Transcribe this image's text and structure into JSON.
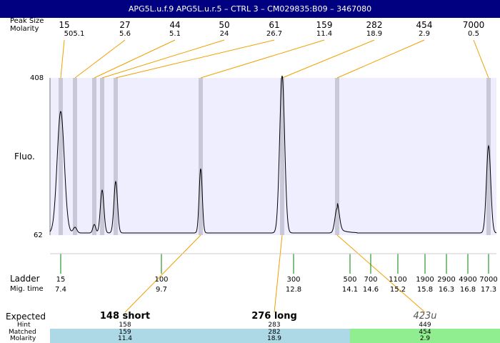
{
  "window": {
    "title": "APG5L.u.f.9  APG5L.u.r.5 – CTRL 3 – CM029835:B09 – 3467080"
  },
  "row_labels": {
    "peak_size": "Peak Size",
    "molarity_top": "Molarity",
    "fluo": "Fluo.",
    "y_max": "408",
    "y_min": "62",
    "ladder": "Ladder",
    "mig_time": "Mig. time",
    "expected": "Expected",
    "hint": "Hint",
    "matched": "Matched",
    "molarity_bottom": "Molarity"
  },
  "peaks": [
    {
      "size": "15",
      "molarity": "505.1"
    },
    {
      "size": "27",
      "molarity": "5.6"
    },
    {
      "size": "44",
      "molarity": "5.1"
    },
    {
      "size": "50",
      "molarity": "24"
    },
    {
      "size": "61",
      "molarity": "26.7"
    },
    {
      "size": "159",
      "molarity": "11.4"
    },
    {
      "size": "282",
      "molarity": "18.9"
    },
    {
      "size": "454",
      "molarity": "2.9"
    },
    {
      "size": "7000",
      "molarity": "0.5"
    }
  ],
  "ladder": [
    {
      "size": "15",
      "time": "7.4"
    },
    {
      "size": "100",
      "time": "9.7"
    },
    {
      "size": "300",
      "time": "12.8"
    },
    {
      "size": "500",
      "time": "14.1"
    },
    {
      "size": "700",
      "time": "14.6"
    },
    {
      "size": "1100",
      "time": "15.2"
    },
    {
      "size": "1900",
      "time": "15.8"
    },
    {
      "size": "2900",
      "time": "16.3"
    },
    {
      "size": "4900",
      "time": "16.8"
    },
    {
      "size": "7000",
      "time": "17.3"
    }
  ],
  "expected": [
    {
      "label": "148 short",
      "hint": "158",
      "matched": "159",
      "molarity": "11.4",
      "color": "#add8e6"
    },
    {
      "label": "276 long",
      "hint": "283",
      "matched": "282",
      "molarity": "18.9",
      "color": "#add8e6"
    },
    {
      "label": "423u",
      "hint": "449",
      "matched": "454",
      "molarity": "2.9",
      "color": "#90ee90"
    }
  ],
  "colors": {
    "title_bg": "#000080",
    "plot_bg": "#eeeeff",
    "peak_band": "#c8c8d8",
    "leader_line": "#f0a000",
    "ladder_tick": "#008000",
    "matched_blue": "#add8e6",
    "matched_green": "#90ee90"
  }
}
